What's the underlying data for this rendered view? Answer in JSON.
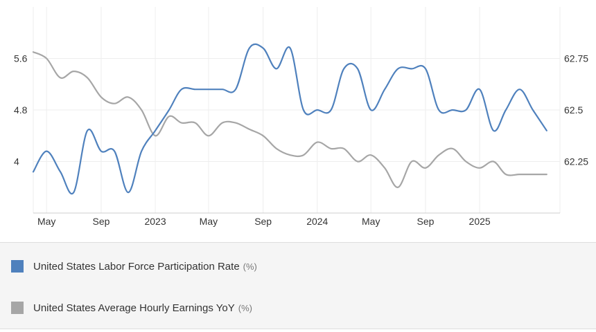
{
  "chart_data": {
    "type": "line",
    "x_range": [
      "2022-04-01",
      "2025-07-01"
    ],
    "x_ticks": [
      {
        "date": "2022-05-01",
        "label": "May"
      },
      {
        "date": "2022-09-01",
        "label": "Sep"
      },
      {
        "date": "2023-01-01",
        "label": "2023"
      },
      {
        "date": "2023-05-01",
        "label": "May"
      },
      {
        "date": "2023-09-01",
        "label": "Sep"
      },
      {
        "date": "2024-01-01",
        "label": "2024"
      },
      {
        "date": "2024-05-01",
        "label": "May"
      },
      {
        "date": "2024-09-01",
        "label": "Sep"
      },
      {
        "date": "2025-01-01",
        "label": "2025"
      }
    ],
    "left_axis": {
      "ylim": [
        3.2,
        6.4
      ],
      "ticks": [
        {
          "value": 4,
          "label": "4"
        },
        {
          "value": 4.8,
          "label": "4.8"
        },
        {
          "value": 5.6,
          "label": "5.6"
        }
      ]
    },
    "right_axis": {
      "ylim": [
        62.0,
        63.0
      ],
      "ticks": [
        {
          "value": 62.25,
          "label": "62.25"
        },
        {
          "value": 62.5,
          "label": "62.5"
        },
        {
          "value": 62.75,
          "label": "62.75"
        }
      ]
    },
    "grid": true,
    "legend_position": "bottom",
    "series": [
      {
        "name": "United States Labor Force Participation Rate",
        "unit": "(%)",
        "color": "#4f81bd",
        "axis": "right",
        "x": [
          "2022-04-01",
          "2022-05-01",
          "2022-06-01",
          "2022-07-01",
          "2022-08-01",
          "2022-09-01",
          "2022-10-01",
          "2022-11-01",
          "2022-12-01",
          "2023-01-01",
          "2023-02-01",
          "2023-03-01",
          "2023-04-01",
          "2023-05-01",
          "2023-06-01",
          "2023-07-01",
          "2023-08-01",
          "2023-09-01",
          "2023-10-01",
          "2023-11-01",
          "2023-12-01",
          "2024-01-01",
          "2024-02-01",
          "2024-03-01",
          "2024-04-01",
          "2024-05-01",
          "2024-06-01",
          "2024-07-01",
          "2024-08-01",
          "2024-09-01",
          "2024-10-01",
          "2024-11-01",
          "2024-12-01",
          "2025-01-01",
          "2025-02-01",
          "2025-03-01",
          "2025-04-01",
          "2025-05-01",
          "2025-06-01"
        ],
        "values": [
          62.2,
          62.3,
          62.2,
          62.1,
          62.4,
          62.3,
          62.3,
          62.1,
          62.3,
          62.4,
          62.5,
          62.6,
          62.6,
          62.6,
          62.6,
          62.6,
          62.8,
          62.8,
          62.7,
          62.8,
          62.5,
          62.5,
          62.5,
          62.7,
          62.7,
          62.5,
          62.6,
          62.7,
          62.7,
          62.7,
          62.5,
          62.5,
          62.5,
          62.6,
          62.4,
          62.5,
          62.6,
          62.5,
          62.4
        ]
      },
      {
        "name": "United States Average Hourly Earnings YoY",
        "unit": "(%)",
        "color": "#a6a6a6",
        "axis": "left",
        "x": [
          "2022-04-01",
          "2022-05-01",
          "2022-06-01",
          "2022-07-01",
          "2022-08-01",
          "2022-09-01",
          "2022-10-01",
          "2022-11-01",
          "2022-12-01",
          "2023-01-01",
          "2023-02-01",
          "2023-03-01",
          "2023-04-01",
          "2023-05-01",
          "2023-06-01",
          "2023-07-01",
          "2023-08-01",
          "2023-09-01",
          "2023-10-01",
          "2023-11-01",
          "2023-12-01",
          "2024-01-01",
          "2024-02-01",
          "2024-03-01",
          "2024-04-01",
          "2024-05-01",
          "2024-06-01",
          "2024-07-01",
          "2024-08-01",
          "2024-09-01",
          "2024-10-01",
          "2024-11-01",
          "2024-12-01",
          "2025-01-01",
          "2025-02-01",
          "2025-03-01",
          "2025-04-01",
          "2025-05-01",
          "2025-06-01"
        ],
        "values": [
          5.7,
          5.6,
          5.3,
          5.4,
          5.3,
          5.0,
          4.9,
          5.0,
          4.8,
          4.4,
          4.7,
          4.6,
          4.6,
          4.4,
          4.6,
          4.6,
          4.5,
          4.4,
          4.2,
          4.1,
          4.1,
          4.3,
          4.2,
          4.2,
          4.0,
          4.1,
          3.9,
          3.6,
          4.0,
          3.9,
          4.1,
          4.2,
          4.0,
          3.9,
          4.0,
          3.8,
          3.8,
          3.8,
          3.8
        ]
      }
    ]
  },
  "legend": [
    {
      "label": "United States Labor Force Participation Rate",
      "unit": "(%)",
      "color": "#4f81bd"
    },
    {
      "label": "United States Average Hourly Earnings YoY",
      "unit": "(%)",
      "color": "#a6a6a6"
    }
  ]
}
